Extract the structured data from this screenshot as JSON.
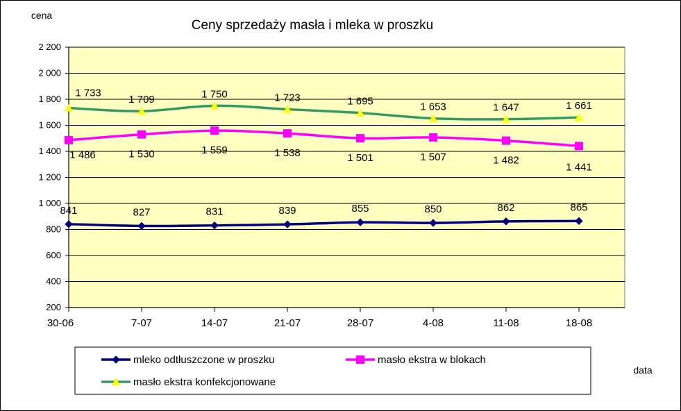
{
  "chart_data": {
    "type": "line",
    "title": "Ceny sprzedaży masła i mleka w proszku",
    "ylabel": "cena",
    "xlabel": "data",
    "categories": [
      "30-06",
      "7-07",
      "14-07",
      "21-07",
      "28-07",
      "4-08",
      "11-08",
      "18-08"
    ],
    "ylim": [
      200,
      2200
    ],
    "yticks": [
      200,
      400,
      600,
      800,
      1000,
      1200,
      1400,
      1600,
      1800,
      2000,
      2200
    ],
    "ytick_labels": [
      "200",
      "400",
      "600",
      "800",
      "1 000",
      "1 200",
      "1 400",
      "1 600",
      "1 800",
      "2 000",
      "2 200"
    ],
    "grid": "horizontal",
    "plot_background": "#ffffc0",
    "legend_position": "bottom",
    "series": [
      {
        "name": "mleko odtłuszczone w proszku",
        "color": "#000080",
        "marker": "diamond",
        "values": [
          841,
          827,
          831,
          839,
          855,
          850,
          862,
          865
        ],
        "labels": [
          "841",
          "827",
          "831",
          "839",
          "855",
          "850",
          "862",
          "865"
        ]
      },
      {
        "name": "masło ekstra w blokach",
        "color": "#ff00ff",
        "marker": "square",
        "values": [
          1486,
          1530,
          1559,
          1538,
          1501,
          1507,
          1482,
          1441
        ],
        "labels": [
          "1 486",
          "1 530",
          "1 559",
          "1 538",
          "1 501",
          "1 507",
          "1 482",
          "1 441"
        ]
      },
      {
        "name": "masło ekstra konfekcjonowane",
        "color": "#339966",
        "marker_color": "#ffff00",
        "marker": "triangle",
        "values": [
          1733,
          1709,
          1750,
          1723,
          1695,
          1653,
          1647,
          1661
        ],
        "labels": [
          "1 733",
          "1 709",
          "1 750",
          "1 723",
          "1 695",
          "1 653",
          "1 647",
          "1 661"
        ]
      }
    ]
  }
}
